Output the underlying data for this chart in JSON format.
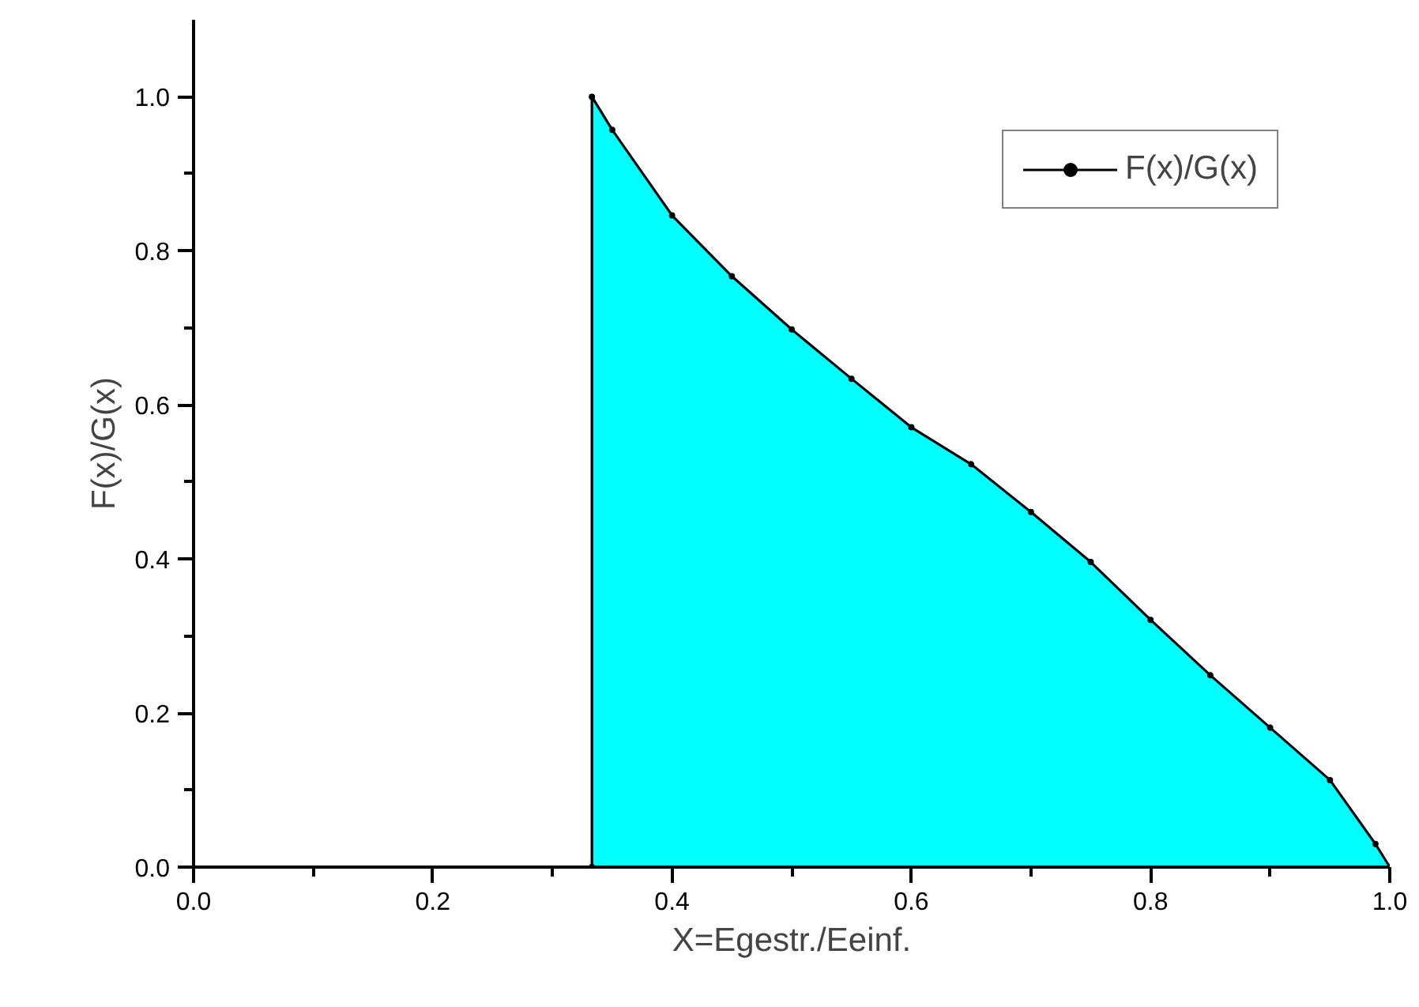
{
  "chart_data": {
    "type": "area",
    "xlabel": "X=Egestr./Eeinf.",
    "ylabel": "F(x)/G(x)",
    "x": [
      0.333,
      0.333,
      0.35,
      0.4,
      0.45,
      0.5,
      0.55,
      0.6,
      0.65,
      0.7,
      0.75,
      0.8,
      0.85,
      0.9,
      0.95,
      0.988,
      1.0
    ],
    "series": [
      {
        "name": "F(x)/G(x)",
        "color": "#00ffff",
        "marker": "circle",
        "values": [
          0,
          1.0,
          0.957,
          0.846,
          0.767,
          0.698,
          0.634,
          0.571,
          0.523,
          0.461,
          0.396,
          0.321,
          0.249,
          0.181,
          0.113,
          0.03,
          0
        ]
      }
    ],
    "xlim": [
      0,
      1.0
    ],
    "ylim": [
      0,
      1.1
    ],
    "xticks": [
      {
        "value": 0,
        "label": "0.0"
      },
      {
        "value": 0.1,
        "label": null
      },
      0.2,
      {
        "value": 0.3,
        "label": null
      },
      0.4,
      {
        "value": 0.5,
        "label": null
      },
      0.6,
      {
        "value": 0.7,
        "label": null
      },
      0.8,
      {
        "value": 0.9,
        "label": null
      },
      {
        "value": 1.0,
        "label": "1.0"
      }
    ],
    "yticks": [
      {
        "value": 0,
        "label": "0.0"
      },
      {
        "value": 0.1,
        "label": null
      },
      0.2,
      {
        "value": 0.3,
        "label": null
      },
      0.4,
      {
        "value": 0.5,
        "label": null
      },
      0.6,
      {
        "value": 0.7,
        "label": null
      },
      0.8,
      {
        "value": 0.9,
        "label": null
      },
      {
        "value": 1.0,
        "label": "1.0"
      }
    ],
    "grid": false,
    "legend": "top right"
  }
}
